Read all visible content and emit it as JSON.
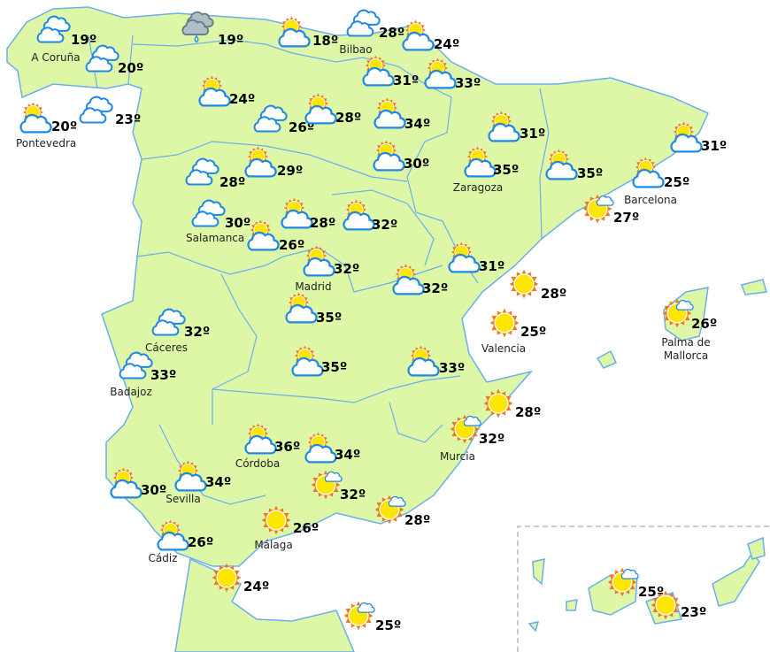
{
  "colors": {
    "land": "#ddf7a6",
    "border": "#6aaef0",
    "sun": "#ffe600",
    "sun_rays": "#f07a1a",
    "cloud_outline": "#1e88e5",
    "rain_cloud": "#b0bec5"
  },
  "stations": [
    {
      "city": "A Coruña",
      "temp": "19º",
      "icon": "cloud"
    },
    {
      "city": "",
      "temp": "19º",
      "icon": "rain"
    },
    {
      "city": "",
      "temp": "18º",
      "icon": "sun-cloud"
    },
    {
      "city": "Bilbao",
      "temp": "28º",
      "icon": "cloud"
    },
    {
      "city": "",
      "temp": "24º",
      "icon": "sun-cloud"
    },
    {
      "city": "",
      "temp": "20º",
      "icon": "cloud"
    },
    {
      "city": "",
      "temp": "31º",
      "icon": "sun-cloud"
    },
    {
      "city": "",
      "temp": "33º",
      "icon": "sun-cloud"
    },
    {
      "city": "",
      "temp": "24º",
      "icon": "sun-cloud"
    },
    {
      "city": "Pontevedra",
      "temp": "20º",
      "icon": "sun-cloud"
    },
    {
      "city": "",
      "temp": "23º",
      "icon": "cloud"
    },
    {
      "city": "",
      "temp": "26º",
      "icon": "cloud"
    },
    {
      "city": "",
      "temp": "28º",
      "icon": "sun-cloud"
    },
    {
      "city": "",
      "temp": "34º",
      "icon": "sun-cloud"
    },
    {
      "city": "",
      "temp": "31º",
      "icon": "sun-cloud"
    },
    {
      "city": "",
      "temp": "31º",
      "icon": "sun-cloud"
    },
    {
      "city": "",
      "temp": "30º",
      "icon": "sun-cloud"
    },
    {
      "city": "Zaragoza",
      "temp": "35º",
      "icon": "sun-cloud"
    },
    {
      "city": "",
      "temp": "35º",
      "icon": "sun-cloud"
    },
    {
      "city": "",
      "temp": "29º",
      "icon": "sun-cloud"
    },
    {
      "city": "",
      "temp": "28º",
      "icon": "cloud"
    },
    {
      "city": "Barcelona",
      "temp": "25º",
      "icon": "sun-cloud"
    },
    {
      "city": "",
      "temp": "27º",
      "icon": "sun-small-cloud"
    },
    {
      "city": "Salamanca",
      "temp": "30º",
      "icon": "cloud"
    },
    {
      "city": "",
      "temp": "28º",
      "icon": "sun-cloud"
    },
    {
      "city": "",
      "temp": "32º",
      "icon": "sun-cloud"
    },
    {
      "city": "",
      "temp": "26º",
      "icon": "sun-cloud"
    },
    {
      "city": "",
      "temp": "31º",
      "icon": "sun-cloud"
    },
    {
      "city": "Madrid",
      "temp": "32º",
      "icon": "sun-cloud"
    },
    {
      "city": "",
      "temp": "32º",
      "icon": "sun-cloud"
    },
    {
      "city": "",
      "temp": "28º",
      "icon": "sun"
    },
    {
      "city": "Palma de Mallorca",
      "temp": "26º",
      "icon": "sun-small-cloud"
    },
    {
      "city": "",
      "temp": "35º",
      "icon": "sun-cloud"
    },
    {
      "city": "Cáceres",
      "temp": "32º",
      "icon": "cloud"
    },
    {
      "city": "Valencia",
      "temp": "25º",
      "icon": "sun"
    },
    {
      "city": "Badajoz",
      "temp": "33º",
      "icon": "cloud"
    },
    {
      "city": "",
      "temp": "35º",
      "icon": "sun-cloud"
    },
    {
      "city": "",
      "temp": "33º",
      "icon": "sun-cloud"
    },
    {
      "city": "",
      "temp": "28º",
      "icon": "sun"
    },
    {
      "city": "Córdoba",
      "temp": "36º",
      "icon": "sun-cloud"
    },
    {
      "city": "",
      "temp": "34º",
      "icon": "sun-cloud"
    },
    {
      "city": "Murcia",
      "temp": "32º",
      "icon": "sun-small-cloud"
    },
    {
      "city": "",
      "temp": "30º",
      "icon": "sun-cloud"
    },
    {
      "city": "Sevilla",
      "temp": "34º",
      "icon": "sun-cloud"
    },
    {
      "city": "",
      "temp": "32º",
      "icon": "sun-small-cloud"
    },
    {
      "city": "",
      "temp": "28º",
      "icon": "sun-small-cloud"
    },
    {
      "city": "Málaga",
      "temp": "26º",
      "icon": "sun"
    },
    {
      "city": "Cádiz",
      "temp": "26º",
      "icon": "sun-cloud"
    },
    {
      "city": "",
      "temp": "24º",
      "icon": "sun"
    },
    {
      "city": "",
      "temp": "25º",
      "icon": "sun-small-cloud"
    },
    {
      "city": "",
      "temp": "25º",
      "icon": "sun-small-cloud"
    },
    {
      "city": "",
      "temp": "23º",
      "icon": "sun"
    }
  ]
}
